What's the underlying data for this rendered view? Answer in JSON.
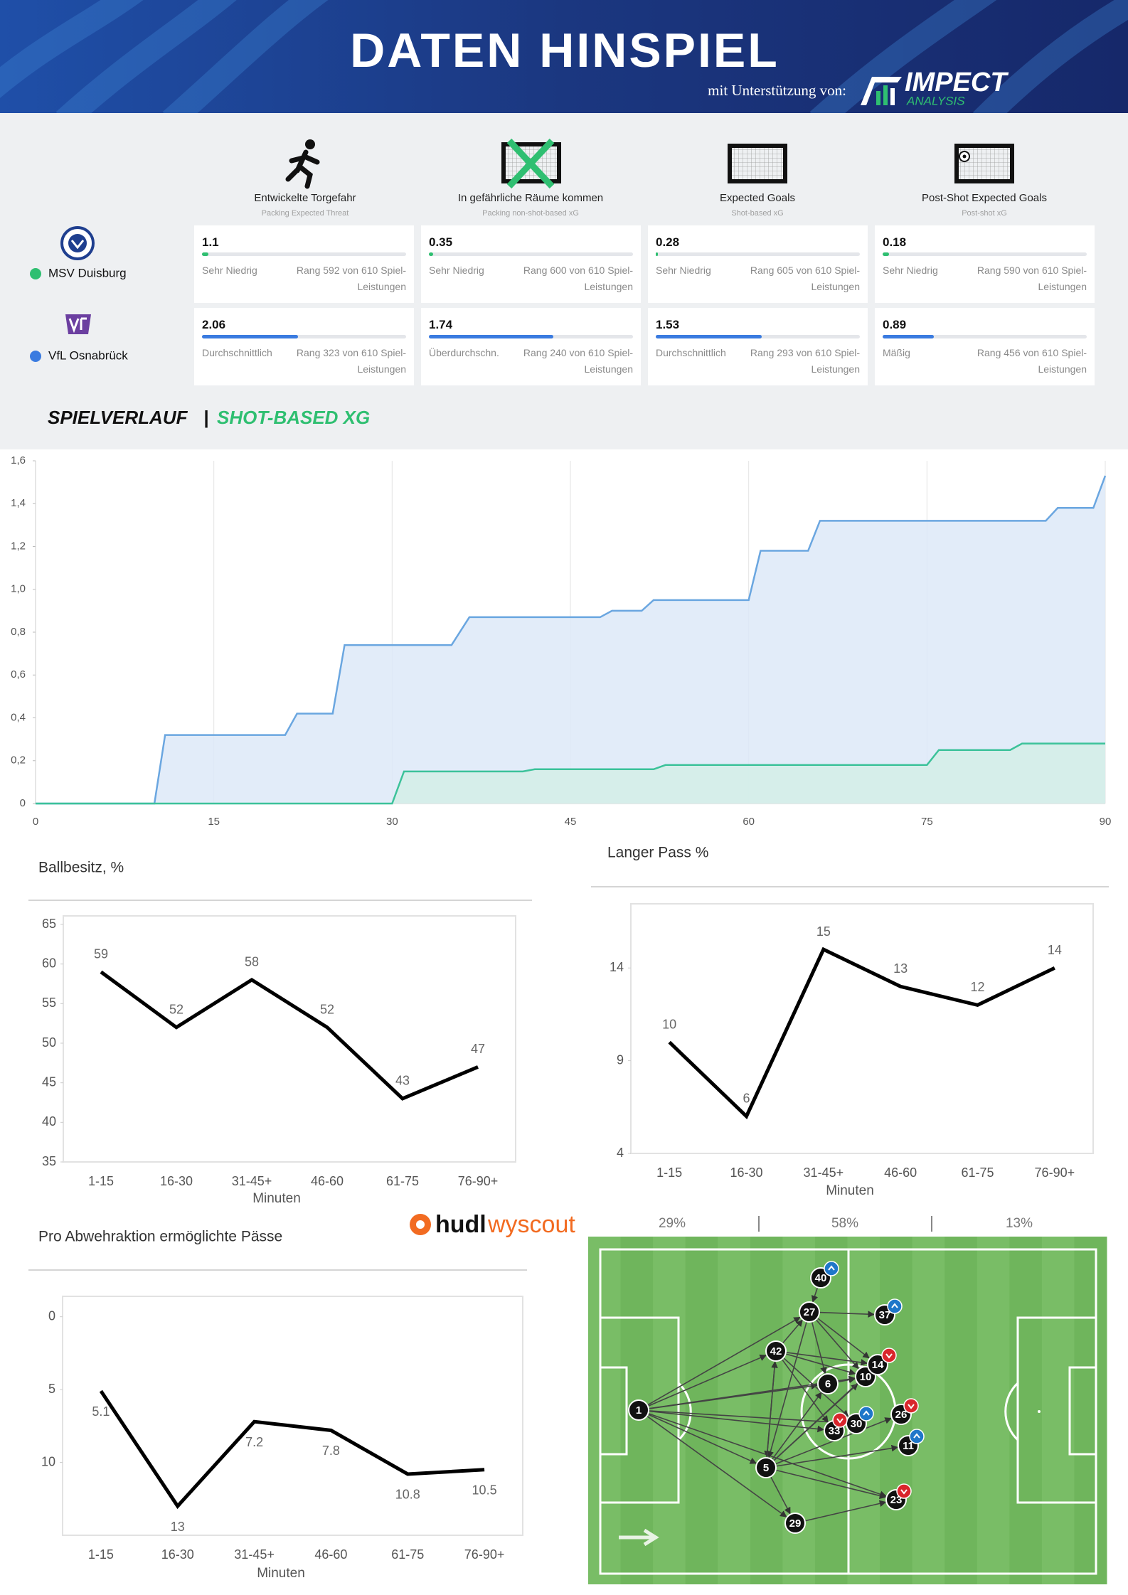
{
  "header": {
    "title": "DATEN HINSPIEL",
    "support": "mit Unterstützung von:",
    "sponsor": "IMPECT",
    "sponsor_sub": "ANALYSIS"
  },
  "metrics": [
    {
      "label": "Entwickelte Torgefahr",
      "sublabel": "Packing Expected Threat"
    },
    {
      "label": "In gefährliche Räume kommen",
      "sublabel": "Packing non-shot-based xG"
    },
    {
      "label": "Expected Goals",
      "sublabel": "Shot-based xG"
    },
    {
      "label": "Post-Shot Expected Goals",
      "sublabel": "Post-shot xG"
    }
  ],
  "teams": [
    {
      "name": "MSV Duisburg",
      "color": "#2fbf71",
      "cards": [
        {
          "value": "1.1",
          "bar": 3,
          "level": "Sehr Niedrig",
          "rank": "Rang 592 von 610 Spiel-Leistungen"
        },
        {
          "value": "0.35",
          "bar": 2,
          "level": "Sehr Niedrig",
          "rank": "Rang 600 von 610 Spiel-Leistungen"
        },
        {
          "value": "0.28",
          "bar": 1,
          "level": "Sehr Niedrig",
          "rank": "Rang 605 von 610 Spiel-Leistungen"
        },
        {
          "value": "0.18",
          "bar": 3,
          "level": "Sehr Niedrig",
          "rank": "Rang 590 von 610 Spiel-Leistungen"
        }
      ]
    },
    {
      "name": "VfL Osnabrück",
      "color": "#3a7be0",
      "cards": [
        {
          "value": "2.06",
          "bar": 47,
          "level": "Durchschnittlich",
          "rank": "Rang 323 von 610 Spiel-Leistungen"
        },
        {
          "value": "1.74",
          "bar": 61,
          "level": "Überdurchschn.",
          "rank": "Rang 240 von 610 Spiel-Leistungen"
        },
        {
          "value": "1.53",
          "bar": 52,
          "level": "Durchschnittlich",
          "rank": "Rang 293 von 610 Spiel-Leistungen"
        },
        {
          "value": "0.89",
          "bar": 25,
          "level": "Mäßig",
          "rank": "Rang 456 von 610 Spiel-Leistungen"
        }
      ]
    }
  ],
  "section_title": {
    "left": "SPIELVERLAUF",
    "separator": "|",
    "right": "SHOT-BASED XG"
  },
  "chart_data": [
    {
      "type": "area",
      "series": [
        {
          "color": "#6aa6e0",
          "fill": "#dde9f8",
          "x": [
            0,
            10,
            10.9,
            21,
            22,
            25,
            26,
            35,
            36.5,
            47.5,
            48.5,
            51,
            52,
            60,
            61,
            65,
            66,
            85,
            86,
            89,
            90
          ],
          "values": [
            0,
            0,
            0.32,
            0.32,
            0.42,
            0.42,
            0.74,
            0.74,
            0.87,
            0.87,
            0.9,
            0.9,
            0.95,
            0.95,
            1.18,
            1.18,
            1.32,
            1.32,
            1.38,
            1.38,
            1.53
          ]
        },
        {
          "color": "#3cc29a",
          "fill": "#d3eee7",
          "x": [
            0,
            30,
            31,
            41,
            42,
            52,
            53,
            75,
            76,
            82,
            83,
            90
          ],
          "values": [
            0,
            0,
            0.15,
            0.15,
            0.16,
            0.16,
            0.18,
            0.18,
            0.25,
            0.25,
            0.28,
            0.28
          ]
        }
      ],
      "xlim": [
        0,
        90
      ],
      "xticks": [
        0,
        15,
        30,
        45,
        60,
        75,
        90
      ],
      "ylim": [
        0,
        1.6
      ],
      "yticks": [
        0,
        {
          "value": 0.2,
          "label": "0,2"
        },
        {
          "value": 0.4,
          "label": "0,4"
        },
        {
          "value": 0.6,
          "label": "0,6"
        },
        {
          "value": 0.8,
          "label": "0,8"
        },
        {
          "value": 1,
          "label": "1,0"
        },
        {
          "value": 1.2,
          "label": "1,2"
        },
        {
          "value": 1.4,
          "label": "1,4"
        },
        {
          "value": 1.6,
          "label": "1,6"
        }
      ],
      "grid": "x"
    },
    {
      "type": "line",
      "title": "Ballbesitz, %",
      "x_label": "Minuten",
      "categories": [
        "1-15",
        "16-30",
        "31-45+",
        "46-60",
        "61-75",
        "76-90+"
      ],
      "values": [
        59,
        52,
        58,
        52,
        43,
        47
      ],
      "color": "#000000",
      "ylim": [
        35,
        65
      ],
      "yticks": [
        35,
        40,
        45,
        50,
        55,
        60,
        65
      ],
      "label_position": "above"
    },
    {
      "type": "line",
      "title": "Langer Pass %",
      "x_label": "Minuten",
      "categories": [
        "1-15",
        "16-30",
        "31-45+",
        "46-60",
        "61-75",
        "76-90+"
      ],
      "values": [
        10,
        6,
        15,
        13,
        12,
        14
      ],
      "color": "#000000",
      "ylim": [
        4,
        17
      ],
      "yticks": [
        4,
        9,
        14
      ],
      "label_position": "above"
    },
    {
      "type": "line",
      "title": "Pro Abwehraktion ermöglichte Pässe",
      "x_label": "Minuten",
      "categories": [
        "1-15",
        "16-30",
        "31-45+",
        "46-60",
        "61-75",
        "76-90+"
      ],
      "values": [
        5.1,
        13,
        7.2,
        7.8,
        10.8,
        10.5
      ],
      "color": "#000000",
      "ylim": [
        -1.4,
        15
      ],
      "y_inverted": true,
      "yticks": [
        0,
        5,
        10
      ],
      "label_position": "below"
    }
  ],
  "branding": {
    "logo_bold": "hudl",
    "logo_light": "wyscout"
  },
  "pass_map": {
    "zones": [
      "29%",
      "58%",
      "13%"
    ],
    "players": [
      "1",
      "5",
      "6",
      "10",
      "11",
      "14",
      "23",
      "26",
      "27",
      "29",
      "30",
      "33",
      "37",
      "40",
      "42"
    ]
  }
}
